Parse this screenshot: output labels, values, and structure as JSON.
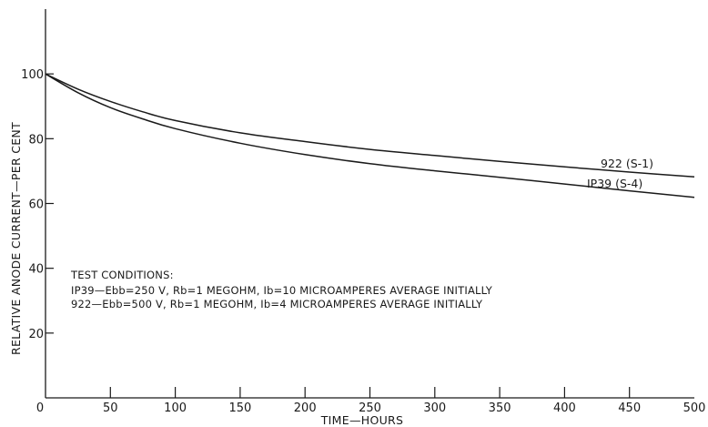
{
  "chart_data": {
    "type": "line",
    "title": "",
    "xlabel": "TIME—HOURS",
    "ylabel": "RELATIVE ANODE CURRENT—PER CENT",
    "xlim": [
      0,
      500
    ],
    "ylim": [
      0,
      120
    ],
    "x_ticks": [
      0,
      50,
      100,
      150,
      200,
      250,
      300,
      350,
      400,
      450,
      500
    ],
    "y_ticks": [
      20,
      40,
      60,
      80,
      100
    ],
    "grid": false,
    "series": [
      {
        "name": "922 (S-1)",
        "x": [
          0,
          25,
          50,
          75,
          100,
          150,
          200,
          250,
          300,
          350,
          400,
          450,
          500
        ],
        "y": [
          100,
          95.3,
          91.5,
          88.3,
          85.6,
          81.8,
          79.1,
          76.7,
          74.8,
          73.0,
          71.3,
          69.7,
          68.2
        ]
      },
      {
        "name": "IP39 (S-4)",
        "x": [
          0,
          25,
          50,
          75,
          100,
          150,
          200,
          250,
          300,
          350,
          400,
          450,
          500
        ],
        "y": [
          100,
          94.2,
          89.6,
          86.1,
          83.1,
          78.6,
          75.1,
          72.3,
          70.1,
          68.1,
          66.0,
          63.9,
          61.9
        ]
      }
    ],
    "annotations": [
      "TEST CONDITIONS:",
      "IP39—Ebb=250 V, Rb=1 MEGOHM, Ib=10 MICROAMPERES AVERAGE INITIALLY",
      "922—Ebb=500 V, Rb=1 MEGOHM, Ib=4 MICROAMPERES AVERAGE INITIALLY"
    ]
  }
}
